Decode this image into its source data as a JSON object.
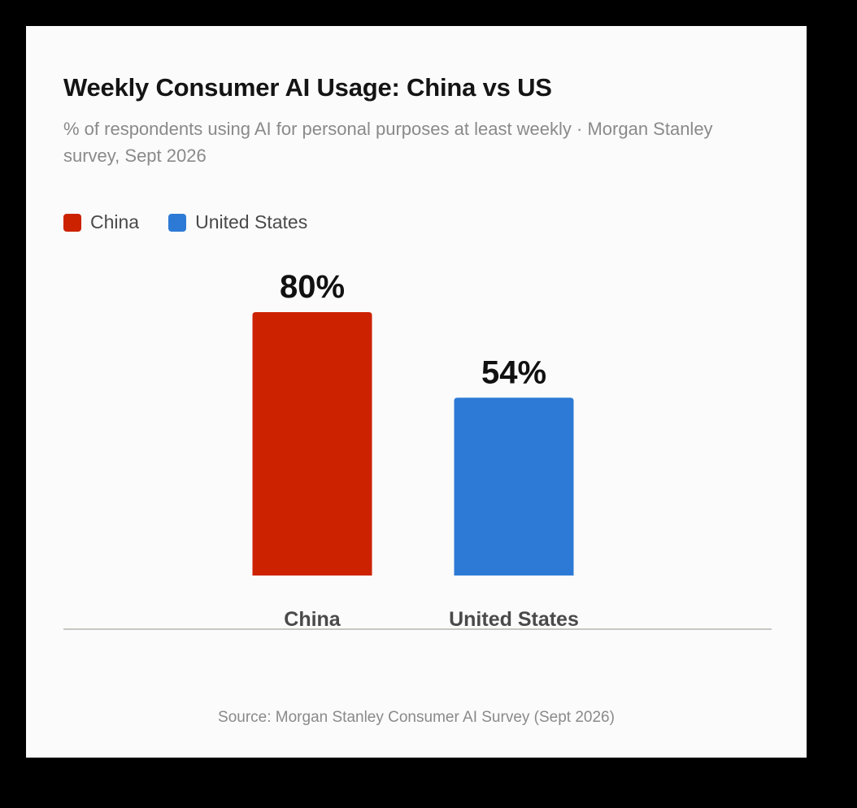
{
  "chart_data": {
    "type": "bar",
    "title": "Weekly Consumer AI Usage: China vs US",
    "subtitle": "% of respondents using AI for personal purposes at least weekly · Morgan Stanley survey, Sept 2026",
    "categories": [
      "China",
      "United States"
    ],
    "values": [
      80,
      54
    ],
    "value_labels": [
      "80%",
      "54%"
    ],
    "colors": [
      "#cc2200",
      "#2d7ad6"
    ],
    "legend": [
      {
        "label": "China",
        "color": "#cc2200"
      },
      {
        "label": "United States",
        "color": "#2d7ad6"
      }
    ],
    "legend_position": "top-left",
    "ylim": [
      0,
      100
    ],
    "xlabel": "",
    "ylabel": "",
    "grid": false,
    "source": "Source: Morgan Stanley Consumer AI Survey (Sept 2026)"
  }
}
